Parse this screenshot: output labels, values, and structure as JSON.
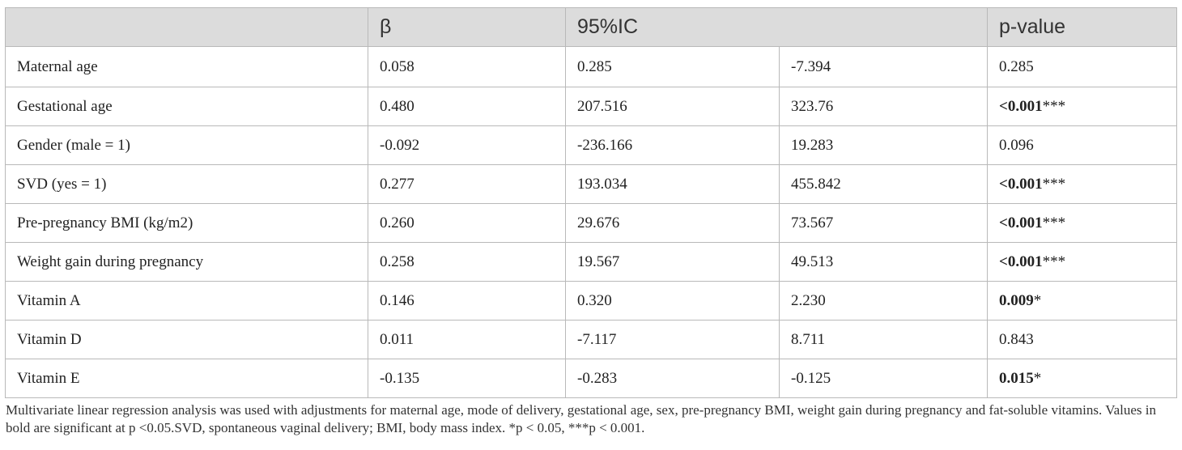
{
  "table": {
    "headers": {
      "beta": "β",
      "ci": "95%IC",
      "pvalue": "p-value"
    },
    "rows": [
      {
        "label": "Maternal age",
        "beta": "0.058",
        "ci_low": "0.285",
        "ci_high": "-7.394",
        "p": "0.285",
        "p_bold": false,
        "stars": ""
      },
      {
        "label": "Gestational age",
        "beta": "0.480",
        "ci_low": "207.516",
        "ci_high": "323.76",
        "p": "<0.001",
        "p_bold": true,
        "stars": "***"
      },
      {
        "label": "Gender (male = 1)",
        "beta": "-0.092",
        "ci_low": "-236.166",
        "ci_high": "19.283",
        "p": "0.096",
        "p_bold": false,
        "stars": ""
      },
      {
        "label": "SVD (yes = 1)",
        "beta": "0.277",
        "ci_low": "193.034",
        "ci_high": "455.842",
        "p": "<0.001",
        "p_bold": true,
        "stars": "***"
      },
      {
        "label": "Pre-pregnancy BMI (kg/m2)",
        "beta": "0.260",
        "ci_low": "29.676",
        "ci_high": "73.567",
        "p": "<0.001",
        "p_bold": true,
        "stars": "***"
      },
      {
        "label": "Weight gain during pregnancy",
        "beta": "0.258",
        "ci_low": "19.567",
        "ci_high": "49.513",
        "p": "<0.001",
        "p_bold": true,
        "stars": "***"
      },
      {
        "label": "Vitamin A",
        "beta": "0.146",
        "ci_low": "0.320",
        "ci_high": "2.230",
        "p": "0.009",
        "p_bold": true,
        "stars": "*"
      },
      {
        "label": "Vitamin D",
        "beta": "0.011",
        "ci_low": "-7.117",
        "ci_high": "8.711",
        "p": "0.843",
        "p_bold": false,
        "stars": ""
      },
      {
        "label": "Vitamin E",
        "beta": "-0.135",
        "ci_low": "-0.283",
        "ci_high": "-0.125",
        "p": "0.015",
        "p_bold": true,
        "stars": "*"
      }
    ]
  },
  "footnote": "Multivariate linear regression analysis was used with adjustments for maternal age, mode of delivery, gestational age, sex, pre-pregnancy BMI, weight gain during pregnancy and fat-soluble vitamins. Values in bold are significant at p <0.05.SVD, spontaneous vaginal delivery; BMI, body mass index. *p < 0.05, ***p < 0.001."
}
